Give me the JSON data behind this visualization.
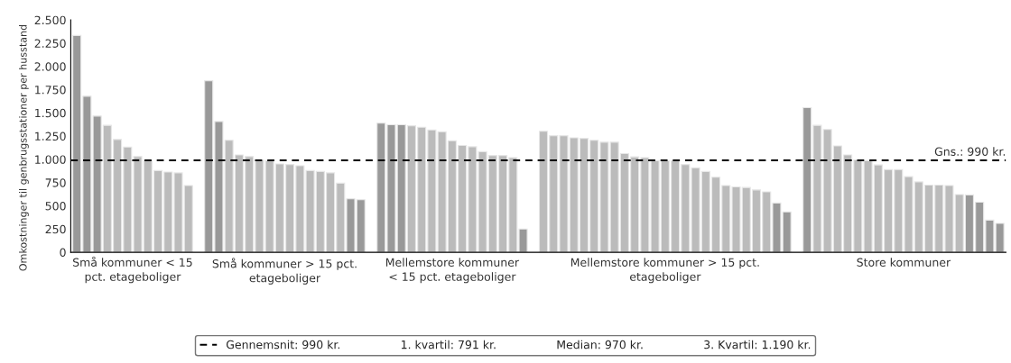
{
  "chart_data": {
    "type": "bar",
    "ylabel": "Omkostninger til genbrugsstationer per husstand",
    "categories": [
      null,
      null,
      null,
      null,
      null,
      null,
      null,
      null,
      null,
      null,
      null,
      null,
      null,
      null,
      null,
      null,
      null,
      null,
      null,
      null,
      null,
      null,
      null,
      null,
      null,
      null,
      null,
      null,
      null,
      null,
      null,
      null,
      null,
      null,
      null,
      null,
      null,
      null,
      null,
      null,
      null,
      null,
      null,
      null,
      null,
      null,
      null,
      null,
      null,
      null,
      null,
      null,
      null,
      null,
      null,
      null,
      null,
      null,
      null,
      null,
      null,
      null,
      null,
      null,
      null,
      null,
      null,
      null,
      null,
      null,
      null,
      null,
      null,
      null,
      null,
      null,
      null,
      null,
      null,
      null,
      null,
      null,
      null,
      null,
      null,
      null,
      null,
      null,
      null,
      null,
      null,
      null
    ],
    "values": [
      2333,
      1679,
      1466,
      1366,
      1214,
      1133,
      1030,
      986,
      879,
      864,
      855,
      718,
      null,
      1846,
      1407,
      1205,
      1047,
      1030,
      995,
      986,
      951,
      945,
      931,
      879,
      870,
      855,
      744,
      575,
      566,
      null,
      1390,
      1372,
      1372,
      1361,
      1346,
      1317,
      1297,
      1200,
      1150,
      1136,
      1083,
      1042,
      1042,
      1018,
      250,
      null,
      1302,
      1255,
      1255,
      1232,
      1226,
      1205,
      1185,
      1185,
      1062,
      1027,
      1018,
      986,
      986,
      986,
      945,
      910,
      870,
      808,
      718,
      703,
      697,
      671,
      650,
      530,
      434,
      null,
      1556,
      1366,
      1322,
      1144,
      1047,
      995,
      986,
      940,
      890,
      890,
      814,
      758,
      723,
      723,
      718,
      621,
      618,
      539,
      346,
      311
    ],
    "colors": [
      "#999999",
      "#999999",
      "#999999",
      "#bbbbbb",
      "#bbbbbb",
      "#bbbbbb",
      "#bbbbbb",
      "#bbbbbb",
      "#bbbbbb",
      "#bbbbbb",
      "#bbbbbb",
      "#bbbbbb",
      null,
      "#999999",
      "#999999",
      "#bbbbbb",
      "#bbbbbb",
      "#bbbbbb",
      "#bbbbbb",
      "#bbbbbb",
      "#bbbbbb",
      "#bbbbbb",
      "#bbbbbb",
      "#bbbbbb",
      "#bbbbbb",
      "#bbbbbb",
      "#bbbbbb",
      "#999999",
      "#999999",
      null,
      "#999999",
      "#999999",
      "#999999",
      "#bbbbbb",
      "#bbbbbb",
      "#bbbbbb",
      "#bbbbbb",
      "#bbbbbb",
      "#bbbbbb",
      "#bbbbbb",
      "#bbbbbb",
      "#bbbbbb",
      "#bbbbbb",
      "#bbbbbb",
      "#999999",
      null,
      "#bbbbbb",
      "#bbbbbb",
      "#bbbbbb",
      "#bbbbbb",
      "#bbbbbb",
      "#bbbbbb",
      "#bbbbbb",
      "#bbbbbb",
      "#bbbbbb",
      "#bbbbbb",
      "#bbbbbb",
      "#bbbbbb",
      "#bbbbbb",
      "#bbbbbb",
      "#bbbbbb",
      "#bbbbbb",
      "#bbbbbb",
      "#bbbbbb",
      "#bbbbbb",
      "#bbbbbb",
      "#bbbbbb",
      "#bbbbbb",
      "#bbbbbb",
      "#999999",
      "#999999",
      null,
      "#999999",
      "#bbbbbb",
      "#bbbbbb",
      "#bbbbbb",
      "#bbbbbb",
      "#bbbbbb",
      "#bbbbbb",
      "#bbbbbb",
      "#bbbbbb",
      "#bbbbbb",
      "#bbbbbb",
      "#bbbbbb",
      "#bbbbbb",
      "#bbbbbb",
      "#bbbbbb",
      "#bbbbbb",
      "#999999",
      "#999999",
      "#999999",
      "#999999"
    ],
    "ylim": [
      0,
      2500
    ],
    "yticks": [
      0,
      {
        "value": 250,
        "label": "250"
      },
      {
        "value": 500,
        "label": "500"
      },
      {
        "value": 750,
        "label": "750"
      },
      {
        "value": 1000,
        "label": "1.000"
      },
      {
        "value": 1250,
        "label": "1.250"
      },
      {
        "value": 1500,
        "label": "1.500"
      },
      {
        "value": 1750,
        "label": "1.750"
      },
      {
        "value": 2000,
        "label": "2.000"
      },
      {
        "value": 2250,
        "label": "2.250"
      },
      {
        "value": 2500,
        "label": "2.500"
      }
    ],
    "ref_lines": [
      {
        "axis": "y",
        "value": 990,
        "label": "Gns.: 990 kr.",
        "color": "#000000",
        "line_style": "dashed"
      }
    ],
    "annotations": [
      "Små kommuner < 15\npct. etageboliger",
      "Små kommuner > 15 pct.\netageboliger",
      "Mellemstore kommuner\n< 15 pct. etageboliger",
      "Mellemstore kommuner > 15 pct.\netageboliger",
      "Store kommuner",
      "Gennemsnit: 990 kr.",
      "1. kvartil: 791 kr.",
      "Median: 970 kr.",
      "3. Kvartil: 1.190 kr."
    ],
    "grid": false,
    "legend": "bottom"
  }
}
